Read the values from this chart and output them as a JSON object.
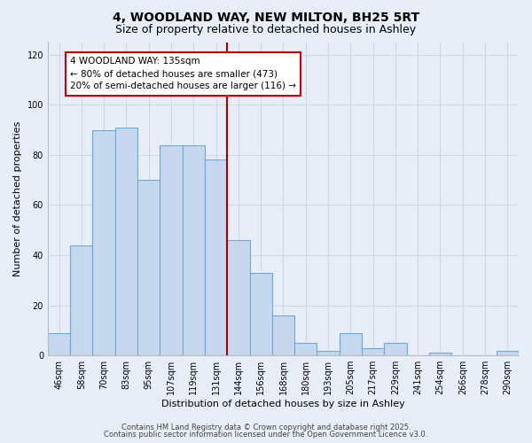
{
  "title": "4, WOODLAND WAY, NEW MILTON, BH25 5RT",
  "subtitle": "Size of property relative to detached houses in Ashley",
  "xlabel": "Distribution of detached houses by size in Ashley",
  "ylabel": "Number of detached properties",
  "bar_labels": [
    "46sqm",
    "58sqm",
    "70sqm",
    "83sqm",
    "95sqm",
    "107sqm",
    "119sqm",
    "131sqm",
    "144sqm",
    "156sqm",
    "168sqm",
    "180sqm",
    "193sqm",
    "205sqm",
    "217sqm",
    "229sqm",
    "241sqm",
    "254sqm",
    "266sqm",
    "278sqm",
    "290sqm"
  ],
  "bar_values": [
    9,
    44,
    90,
    91,
    70,
    84,
    84,
    78,
    46,
    33,
    16,
    5,
    2,
    9,
    3,
    5,
    0,
    1,
    0,
    0,
    2
  ],
  "bar_color": "#c5d8ee",
  "bar_edge_color": "#6aaad4",
  "vline_x": 7.5,
  "vline_color": "#aa0000",
  "annotation_text": "4 WOODLAND WAY: 135sqm\n← 80% of detached houses are smaller (473)\n20% of semi-detached houses are larger (116) →",
  "annotation_box_edgecolor": "#cc0000",
  "ylim": [
    0,
    125
  ],
  "yticks": [
    0,
    20,
    40,
    60,
    80,
    100,
    120
  ],
  "footer1": "Contains HM Land Registry data © Crown copyright and database right 2025.",
  "footer2": "Contains public sector information licensed under the Open Government Licence v3.0.",
  "bg_color": "#e8eef8",
  "grid_color": "#d0d8e8",
  "title_fontsize": 10,
  "subtitle_fontsize": 9,
  "axis_label_fontsize": 8,
  "tick_fontsize": 7,
  "footer_fontsize": 6,
  "annot_fontsize": 7.5
}
